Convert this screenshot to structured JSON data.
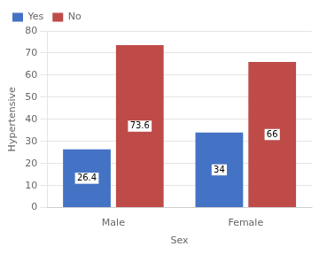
{
  "chart_data": {
    "type": "bar",
    "categories": [
      "Male",
      "Female"
    ],
    "series": [
      {
        "name": "Yes",
        "color": "#4472C4",
        "values": [
          26.4,
          34
        ]
      },
      {
        "name": "No",
        "color": "#BE4B48",
        "values": [
          73.6,
          66
        ]
      }
    ],
    "xlabel": "Sex",
    "ylabel": "Hypertensive",
    "ylim": [
      0,
      80
    ],
    "yticks": [
      0,
      10,
      20,
      30,
      40,
      50,
      60,
      70,
      80
    ],
    "grid": true,
    "legend": "upper left",
    "data_labels": true
  }
}
